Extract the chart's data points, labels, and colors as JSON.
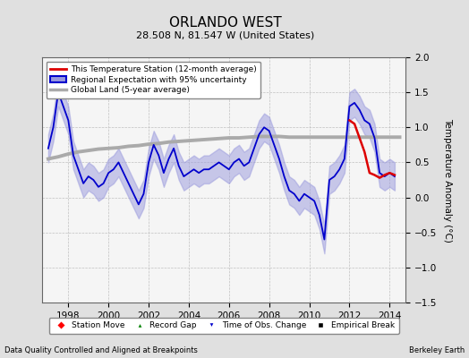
{
  "title": "ORLANDO WEST",
  "subtitle": "28.508 N, 81.547 W (United States)",
  "ylabel": "Temperature Anomaly (°C)",
  "xlim": [
    1996.7,
    2014.8
  ],
  "ylim": [
    -1.5,
    2.0
  ],
  "yticks": [
    -1.5,
    -1.0,
    -0.5,
    0.0,
    0.5,
    1.0,
    1.5,
    2.0
  ],
  "xticks": [
    1998,
    2000,
    2002,
    2004,
    2006,
    2008,
    2010,
    2012,
    2014
  ],
  "footer_left": "Data Quality Controlled and Aligned at Breakpoints",
  "footer_right": "Berkeley Earth",
  "bg_color": "#e0e0e0",
  "plot_bg_color": "#f5f5f5",
  "regional_color": "#0000cc",
  "regional_fill_color": "#9999dd",
  "station_color": "#dd0000",
  "global_color": "#aaaaaa",
  "regional_x": [
    1997.0,
    1997.25,
    1997.5,
    1997.75,
    1998.0,
    1998.25,
    1998.5,
    1998.75,
    1999.0,
    1999.25,
    1999.5,
    1999.75,
    2000.0,
    2000.25,
    2000.5,
    2000.75,
    2001.0,
    2001.25,
    2001.5,
    2001.75,
    2002.0,
    2002.25,
    2002.5,
    2002.75,
    2003.0,
    2003.25,
    2003.5,
    2003.75,
    2004.0,
    2004.25,
    2004.5,
    2004.75,
    2005.0,
    2005.25,
    2005.5,
    2005.75,
    2006.0,
    2006.25,
    2006.5,
    2006.75,
    2007.0,
    2007.25,
    2007.5,
    2007.75,
    2008.0,
    2008.25,
    2008.5,
    2008.75,
    2009.0,
    2009.25,
    2009.5,
    2009.75,
    2010.0,
    2010.25,
    2010.5,
    2010.75,
    2011.0,
    2011.25,
    2011.5,
    2011.75,
    2012.0,
    2012.25,
    2012.5,
    2012.75,
    2013.0,
    2013.25,
    2013.5,
    2013.75,
    2014.0,
    2014.25
  ],
  "regional_y": [
    0.7,
    1.0,
    1.5,
    1.3,
    1.1,
    0.6,
    0.4,
    0.2,
    0.3,
    0.25,
    0.15,
    0.2,
    0.35,
    0.4,
    0.5,
    0.35,
    0.2,
    0.05,
    -0.1,
    0.05,
    0.5,
    0.75,
    0.6,
    0.35,
    0.55,
    0.7,
    0.45,
    0.3,
    0.35,
    0.4,
    0.35,
    0.4,
    0.4,
    0.45,
    0.5,
    0.45,
    0.4,
    0.5,
    0.55,
    0.45,
    0.5,
    0.7,
    0.9,
    1.0,
    0.95,
    0.75,
    0.55,
    0.3,
    0.1,
    0.05,
    -0.05,
    0.05,
    0.0,
    -0.05,
    -0.25,
    -0.6,
    0.25,
    0.3,
    0.4,
    0.55,
    1.3,
    1.35,
    1.25,
    1.1,
    1.05,
    0.85,
    0.35,
    0.3,
    0.35,
    0.3
  ],
  "regional_upper": [
    0.9,
    1.2,
    1.7,
    1.5,
    1.3,
    0.8,
    0.6,
    0.4,
    0.5,
    0.45,
    0.35,
    0.4,
    0.55,
    0.6,
    0.7,
    0.55,
    0.4,
    0.25,
    0.1,
    0.25,
    0.7,
    0.95,
    0.8,
    0.55,
    0.75,
    0.9,
    0.65,
    0.5,
    0.55,
    0.6,
    0.55,
    0.6,
    0.6,
    0.65,
    0.7,
    0.65,
    0.6,
    0.7,
    0.75,
    0.65,
    0.7,
    0.9,
    1.1,
    1.2,
    1.15,
    0.95,
    0.75,
    0.5,
    0.3,
    0.25,
    0.15,
    0.25,
    0.2,
    0.15,
    -0.05,
    -0.4,
    0.45,
    0.5,
    0.6,
    0.75,
    1.5,
    1.55,
    1.45,
    1.3,
    1.25,
    1.05,
    0.55,
    0.5,
    0.55,
    0.5
  ],
  "regional_lower": [
    0.5,
    0.8,
    1.3,
    1.1,
    0.9,
    0.4,
    0.2,
    0.0,
    0.1,
    0.05,
    -0.05,
    0.0,
    0.15,
    0.2,
    0.3,
    0.15,
    0.0,
    -0.15,
    -0.3,
    -0.15,
    0.3,
    0.55,
    0.4,
    0.15,
    0.35,
    0.5,
    0.25,
    0.1,
    0.15,
    0.2,
    0.15,
    0.2,
    0.2,
    0.25,
    0.3,
    0.25,
    0.2,
    0.3,
    0.35,
    0.25,
    0.3,
    0.5,
    0.7,
    0.8,
    0.75,
    0.55,
    0.35,
    0.1,
    -0.1,
    -0.15,
    -0.25,
    -0.15,
    -0.2,
    -0.25,
    -0.45,
    -0.8,
    0.05,
    0.1,
    0.2,
    0.35,
    1.1,
    1.15,
    1.05,
    0.9,
    0.85,
    0.65,
    0.15,
    0.1,
    0.15,
    0.1
  ],
  "global_x": [
    1997.0,
    1997.5,
    1998.0,
    1998.5,
    1999.0,
    1999.5,
    2000.0,
    2000.5,
    2001.0,
    2001.5,
    2002.0,
    2002.5,
    2003.0,
    2003.5,
    2004.0,
    2004.5,
    2005.0,
    2005.5,
    2006.0,
    2006.5,
    2007.0,
    2007.5,
    2008.0,
    2008.5,
    2009.0,
    2009.5,
    2010.0,
    2010.5,
    2011.0,
    2011.5,
    2012.0,
    2012.5,
    2013.0,
    2013.5,
    2014.0,
    2014.5
  ],
  "global_y": [
    0.55,
    0.58,
    0.62,
    0.65,
    0.67,
    0.69,
    0.7,
    0.71,
    0.73,
    0.74,
    0.76,
    0.77,
    0.79,
    0.8,
    0.81,
    0.82,
    0.83,
    0.84,
    0.85,
    0.85,
    0.86,
    0.87,
    0.87,
    0.87,
    0.86,
    0.86,
    0.86,
    0.86,
    0.86,
    0.86,
    0.86,
    0.86,
    0.86,
    0.86,
    0.86,
    0.86
  ],
  "station_x": [
    2012.0,
    2012.25,
    2012.5,
    2012.75,
    2013.0,
    2013.25,
    2013.5,
    2013.75,
    2014.0,
    2014.25
  ],
  "station_y": [
    1.1,
    1.05,
    0.85,
    0.65,
    0.35,
    0.32,
    0.28,
    0.32,
    0.35,
    0.32
  ],
  "time_of_obs_x": [
    2011.5
  ],
  "time_of_obs_y": [
    -1.5
  ]
}
